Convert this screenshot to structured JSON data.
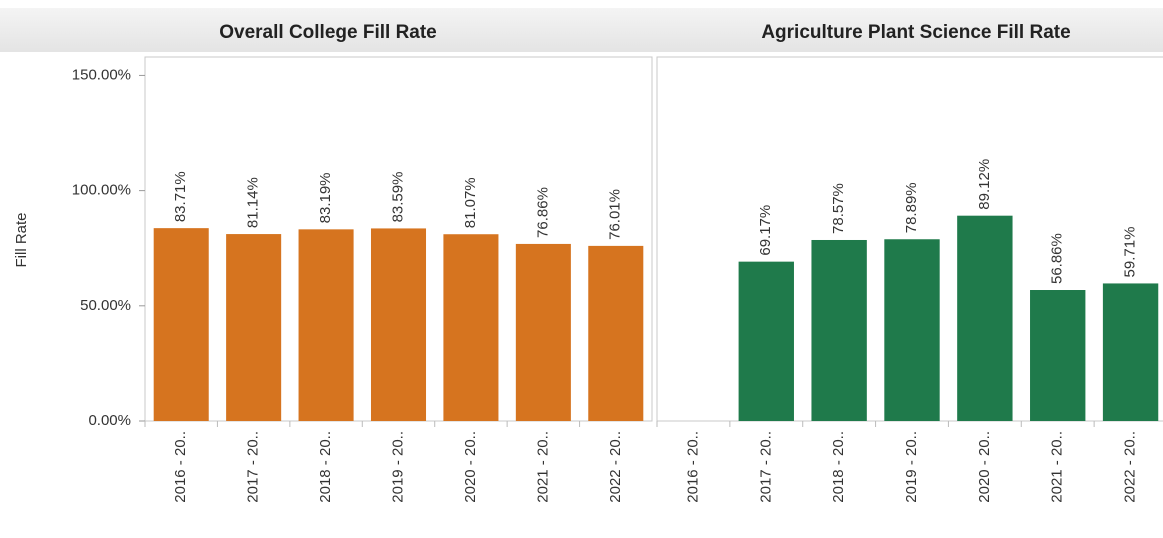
{
  "chart_data": [
    {
      "type": "bar",
      "title": "Overall College Fill Rate",
      "y_label": "Fill Rate",
      "categories": [
        "2016 - 20..",
        "2017 - 20..",
        "2018 - 20..",
        "2019 - 20..",
        "2020 - 20..",
        "2021 - 20..",
        "2022 - 20.."
      ],
      "values": [
        83.71,
        81.14,
        83.19,
        83.59,
        81.07,
        76.86,
        76.01
      ],
      "value_labels": [
        "83.71%",
        "81.14%",
        "83.19%",
        "83.59%",
        "81.07%",
        "76.86%",
        "76.01%"
      ],
      "color": "#d6741f",
      "ylim": [
        0,
        158
      ],
      "yticks": [
        {
          "value": 0,
          "label": "0.00%"
        },
        {
          "value": 50,
          "label": "50.00%"
        },
        {
          "value": 100,
          "label": "100.00%"
        },
        {
          "value": 150,
          "label": "150.00%"
        }
      ]
    },
    {
      "type": "bar",
      "title": "Agriculture Plant Science Fill Rate",
      "categories": [
        "2016 - 20..",
        "2017 - 20..",
        "2018 - 20..",
        "2019 - 20..",
        "2020 - 20..",
        "2021 - 20..",
        "2022 - 20.."
      ],
      "values": [
        null,
        69.17,
        78.57,
        78.89,
        89.12,
        56.86,
        59.71
      ],
      "value_labels": [
        null,
        "69.17%",
        "78.57%",
        "78.89%",
        "89.12%",
        "56.86%",
        "59.71%"
      ],
      "color": "#1f7a4b",
      "ylim": [
        0,
        158
      ]
    }
  ]
}
